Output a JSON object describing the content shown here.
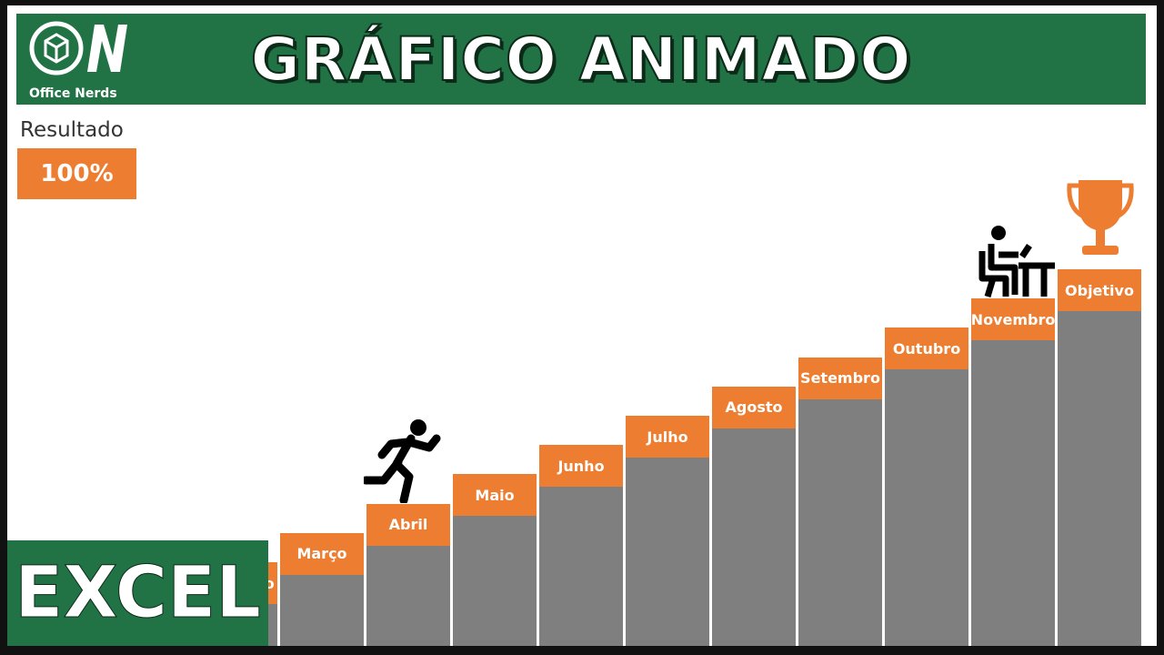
{
  "header": {
    "logo_text": "Office Nerds",
    "title": "GRÁFICO ANIMADO"
  },
  "result": {
    "label": "Resultado",
    "value": "100%"
  },
  "steps": [
    "Fevereiro",
    "Março",
    "Abril",
    "Maio",
    "Junho",
    "Julho",
    "Agosto",
    "Setembro",
    "Outubro",
    "Novembro",
    "Objetivo"
  ],
  "badge": "EXCEL"
}
